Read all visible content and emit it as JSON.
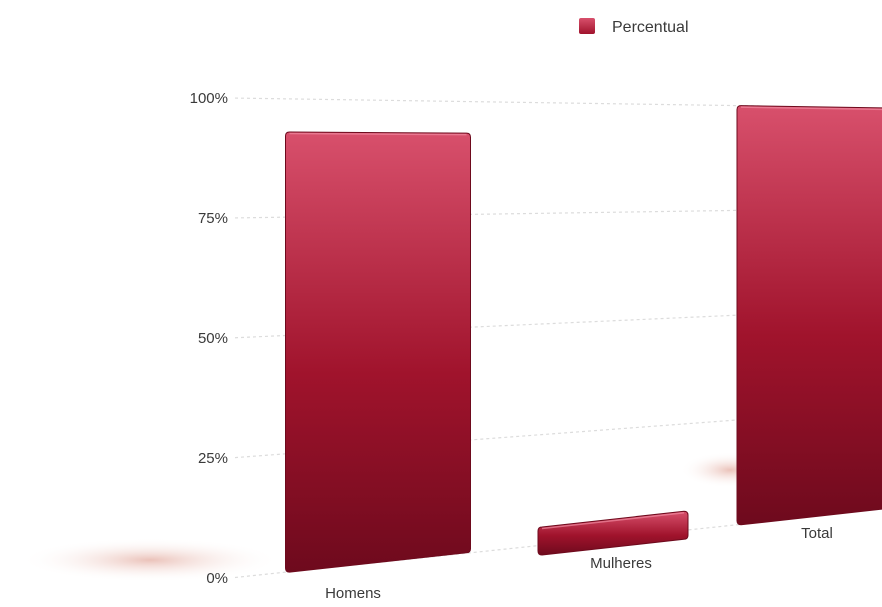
{
  "chart_data": {
    "type": "bar",
    "categories": [
      "Homens",
      "Mulheres",
      "Total"
    ],
    "series": [
      {
        "name": "Percentual",
        "values": [
          93,
          9,
          100
        ]
      }
    ],
    "ylim": [
      0,
      100
    ],
    "yticks": [
      "0%",
      "25%",
      "50%",
      "75%",
      "100%"
    ],
    "grid": true,
    "legend_position": "top-center",
    "bar_color": "#a0132c",
    "bar_color_light": "#d8506c",
    "bar_color_dark": "#6e0a1d"
  }
}
